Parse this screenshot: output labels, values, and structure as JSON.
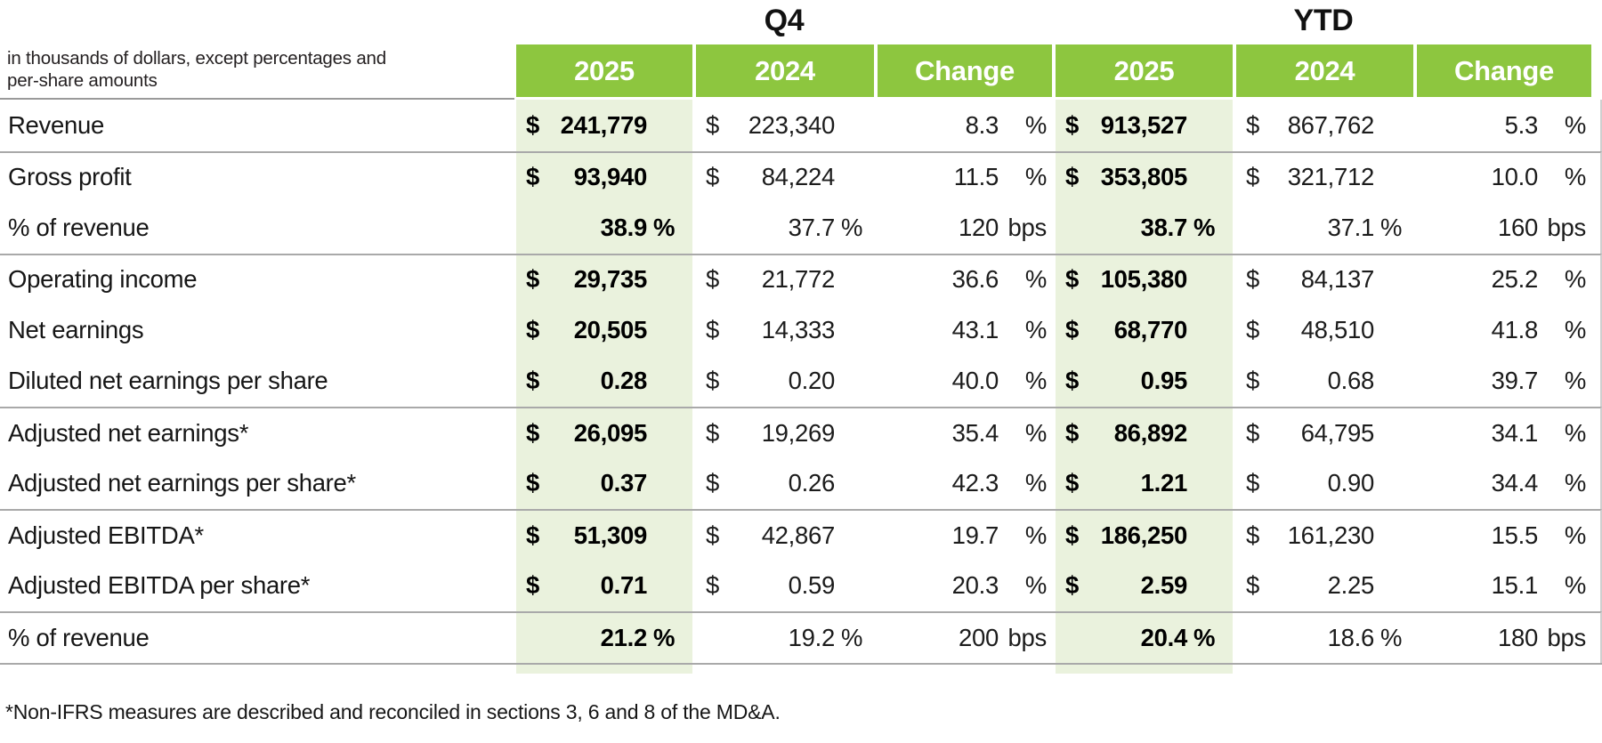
{
  "colors": {
    "header_green": "#8dc63f",
    "light_green": "#eaf2dd",
    "rule_gray": "#a9a9a9"
  },
  "table": {
    "caption_line1": "in thousands of dollars, except percentages and",
    "caption_line2": "per-share amounts",
    "groups": [
      {
        "label": "Q4"
      },
      {
        "label": "YTD"
      }
    ],
    "columns": [
      "2025",
      "2024",
      "Change",
      "2025",
      "2024",
      "Change"
    ],
    "rows": [
      {
        "label": "Revenue",
        "sep": false,
        "cells": [
          {
            "cur": "$",
            "val": "241,779"
          },
          {
            "cur": "$",
            "val": "223,340"
          },
          {
            "val": "8.3",
            "unit": "%"
          },
          {
            "cur": "$",
            "val": "913,527"
          },
          {
            "cur": "$",
            "val": "867,762"
          },
          {
            "val": "5.3",
            "unit": "%"
          }
        ]
      },
      {
        "label": "Gross profit",
        "sep": true,
        "cells": [
          {
            "cur": "$",
            "val": "93,940"
          },
          {
            "cur": "$",
            "val": "84,224"
          },
          {
            "val": "11.5",
            "unit": "%"
          },
          {
            "cur": "$",
            "val": "353,805"
          },
          {
            "cur": "$",
            "val": "321,712"
          },
          {
            "val": "10.0",
            "unit": "%"
          }
        ]
      },
      {
        "label": "% of revenue",
        "sep": false,
        "cells": [
          {
            "val": "38.9",
            "unit": "%"
          },
          {
            "val": "37.7",
            "unit": "%"
          },
          {
            "val": "120",
            "unit": "bps"
          },
          {
            "val": "38.7",
            "unit": "%"
          },
          {
            "val": "37.1",
            "unit": "%"
          },
          {
            "val": "160",
            "unit": "bps"
          }
        ]
      },
      {
        "label": "Operating income",
        "sep": true,
        "cells": [
          {
            "cur": "$",
            "val": "29,735"
          },
          {
            "cur": "$",
            "val": "21,772"
          },
          {
            "val": "36.6",
            "unit": "%"
          },
          {
            "cur": "$",
            "val": "105,380"
          },
          {
            "cur": "$",
            "val": "84,137"
          },
          {
            "val": "25.2",
            "unit": "%"
          }
        ]
      },
      {
        "label": "Net earnings",
        "sep": false,
        "cells": [
          {
            "cur": "$",
            "val": "20,505"
          },
          {
            "cur": "$",
            "val": "14,333"
          },
          {
            "val": "43.1",
            "unit": "%"
          },
          {
            "cur": "$",
            "val": "68,770"
          },
          {
            "cur": "$",
            "val": "48,510"
          },
          {
            "val": "41.8",
            "unit": "%"
          }
        ]
      },
      {
        "label": "Diluted net earnings per share",
        "sep": false,
        "cells": [
          {
            "cur": "$",
            "val": "0.28"
          },
          {
            "cur": "$",
            "val": "0.20"
          },
          {
            "val": "40.0",
            "unit": "%"
          },
          {
            "cur": "$",
            "val": "0.95"
          },
          {
            "cur": "$",
            "val": "0.68"
          },
          {
            "val": "39.7",
            "unit": "%"
          }
        ]
      },
      {
        "label": "Adjusted net earnings*",
        "sep": true,
        "cells": [
          {
            "cur": "$",
            "val": "26,095"
          },
          {
            "cur": "$",
            "val": "19,269"
          },
          {
            "val": "35.4",
            "unit": "%"
          },
          {
            "cur": "$",
            "val": "86,892"
          },
          {
            "cur": "$",
            "val": "64,795"
          },
          {
            "val": "34.1",
            "unit": "%"
          }
        ]
      },
      {
        "label": "Adjusted net earnings per share*",
        "sep": false,
        "cells": [
          {
            "cur": "$",
            "val": "0.37"
          },
          {
            "cur": "$",
            "val": "0.26"
          },
          {
            "val": "42.3",
            "unit": "%"
          },
          {
            "cur": "$",
            "val": "1.21"
          },
          {
            "cur": "$",
            "val": "0.90"
          },
          {
            "val": "34.4",
            "unit": "%"
          }
        ]
      },
      {
        "label": "Adjusted EBITDA*",
        "sep": true,
        "cells": [
          {
            "cur": "$",
            "val": "51,309"
          },
          {
            "cur": "$",
            "val": "42,867"
          },
          {
            "val": "19.7",
            "unit": "%"
          },
          {
            "cur": "$",
            "val": "186,250"
          },
          {
            "cur": "$",
            "val": "161,230"
          },
          {
            "val": "15.5",
            "unit": "%"
          }
        ]
      },
      {
        "label": "Adjusted EBITDA per share*",
        "sep": false,
        "cells": [
          {
            "cur": "$",
            "val": "0.71"
          },
          {
            "cur": "$",
            "val": "0.59"
          },
          {
            "val": "20.3",
            "unit": "%"
          },
          {
            "cur": "$",
            "val": "2.59"
          },
          {
            "cur": "$",
            "val": "2.25"
          },
          {
            "val": "15.1",
            "unit": "%"
          }
        ]
      },
      {
        "label": "% of revenue",
        "sep": true,
        "cells": [
          {
            "val": "21.2",
            "unit": "%"
          },
          {
            "val": "19.2",
            "unit": "%"
          },
          {
            "val": "200",
            "unit": "bps"
          },
          {
            "val": "20.4",
            "unit": "%"
          },
          {
            "val": "18.6",
            "unit": "%"
          },
          {
            "val": "180",
            "unit": "bps"
          }
        ]
      }
    ],
    "footnote": "*Non-IFRS measures are described and reconciled in sections 3, 6 and 8 of the MD&A."
  }
}
